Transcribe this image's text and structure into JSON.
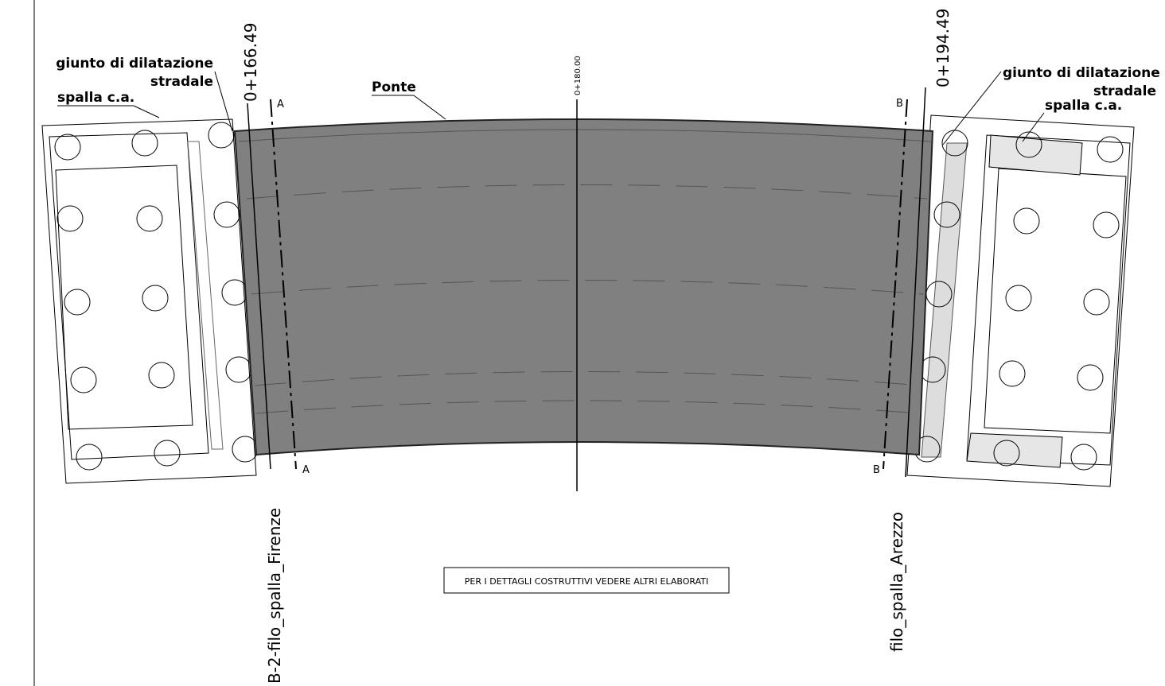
{
  "left_abutment": {
    "joint_label": [
      "giunto di dilatazione",
      "stradale"
    ],
    "abutment_label": "spalla c.a.",
    "station": "0+166.49",
    "alignment_label": "B-2-filo_spalla_Firenze"
  },
  "bridge": {
    "label": "Ponte",
    "center_station": "0+180.00"
  },
  "right_abutment": {
    "joint_label": [
      "giunto di dilatazione",
      "stradale"
    ],
    "abutment_label": "spalla c.a.",
    "station": "0+194.49",
    "alignment_label": "filo_spalla_Arezzo"
  },
  "sections": {
    "top_left": "A",
    "bottom_left": "A",
    "top_right": "B",
    "bottom_right": "B"
  },
  "note": "PER I DETTAGLI COSTRUTTIVI VEDERE ALTRI ELABORATI"
}
